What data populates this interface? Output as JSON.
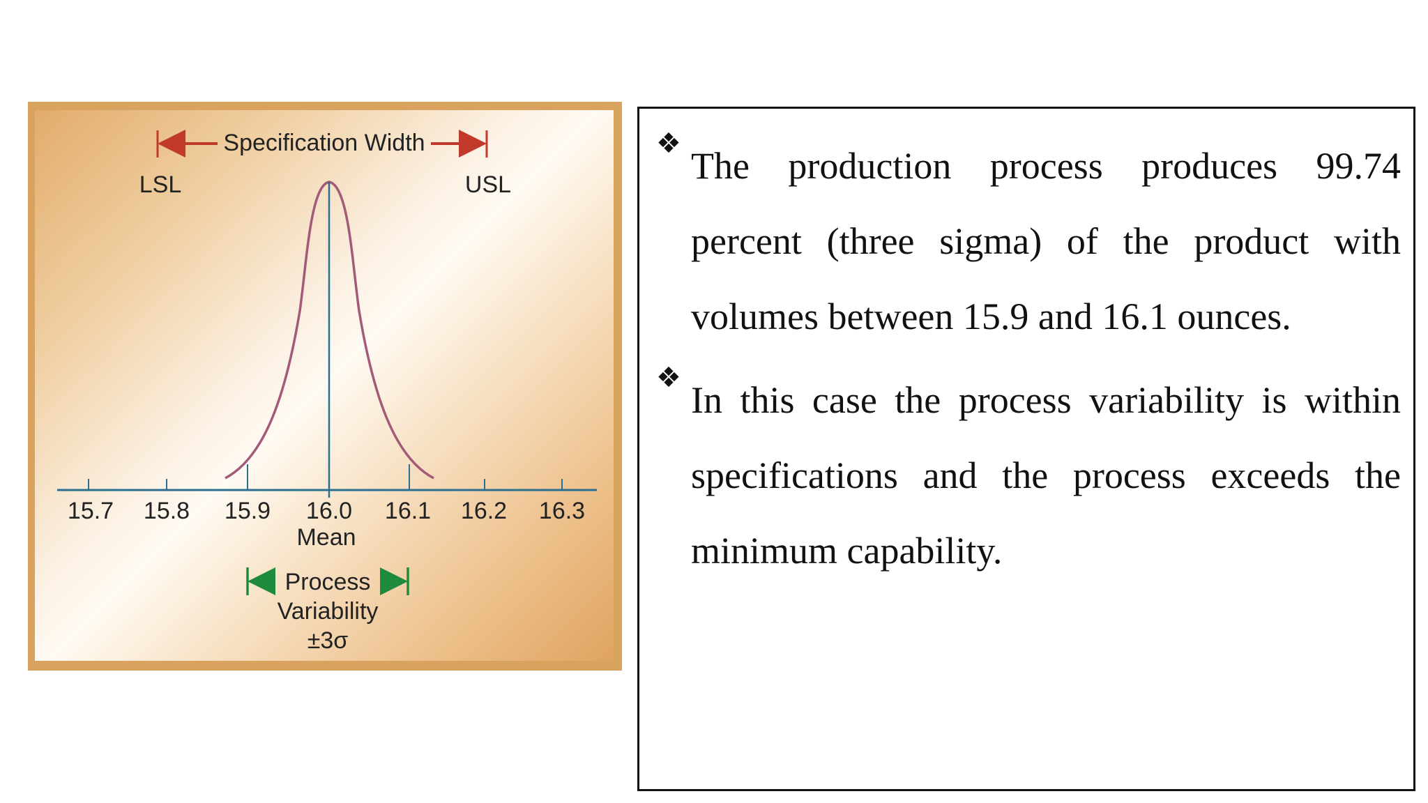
{
  "diagram": {
    "spec_width_label": "Specification Width",
    "lsl_label": "LSL",
    "usl_label": "USL",
    "axis_ticks": [
      "15.7",
      "15.8",
      "15.9",
      "16.0",
      "16.1",
      "16.2",
      "16.3"
    ],
    "mean_label": "Mean",
    "process_label": "Process",
    "variability_label": "Variability",
    "sigma_label": "±3σ",
    "colors": {
      "spec_arrow": "#c0392b",
      "process_arrow": "#1e8a3c",
      "axis": "#2a6f8f",
      "curve": "#a35a78",
      "mean_line": "#2a6f8f"
    }
  },
  "bullets": [
    {
      "icon": "diamond-bullet-icon",
      "text": "The production process produces 99.74 percent (three sigma) of the product with volumes between 15.9 and 16.1 ounces."
    },
    {
      "icon": "diamond-bullet-icon",
      "text": "In this case the process variability is within specifications and the process exceeds the minimum capability."
    }
  ]
}
